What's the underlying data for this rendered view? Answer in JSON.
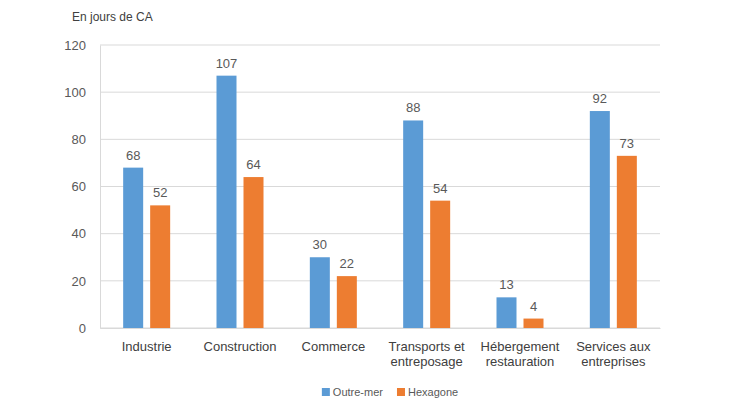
{
  "chart_data": {
    "type": "bar",
    "y_label": "En jours de CA",
    "categories": [
      "Industrie",
      "Construction",
      "Commerce",
      "Transports et entreposage",
      "Hébergement restauration",
      "Services aux entreprises"
    ],
    "series": [
      {
        "name": "Outre-mer",
        "color": "#5b9bd5",
        "values": [
          68,
          107,
          30,
          88,
          13,
          92
        ]
      },
      {
        "name": "Hexagone",
        "color": "#ed7d31",
        "values": [
          52,
          64,
          22,
          54,
          4,
          73
        ]
      }
    ],
    "ylim": [
      0,
      120
    ],
    "yticks": [
      0,
      20,
      40,
      60,
      80,
      100,
      120
    ],
    "grid": true,
    "data_labels": true,
    "legend": "bottom"
  }
}
